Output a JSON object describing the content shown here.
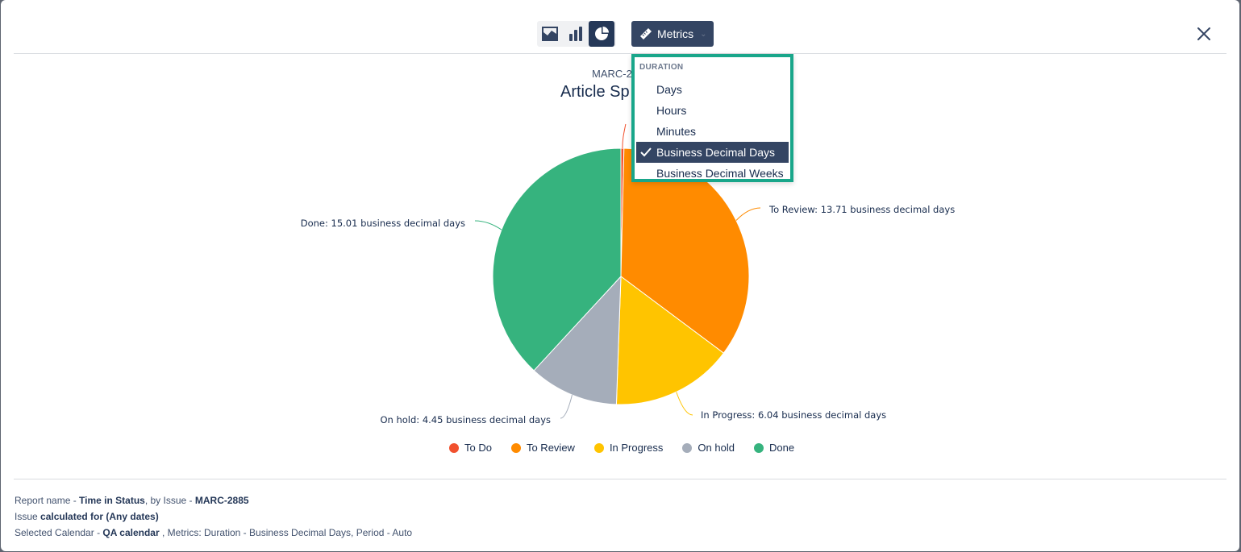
{
  "toolbar": {
    "views": [
      {
        "name": "area-chart-view",
        "icon": "area-chart-icon",
        "active": false
      },
      {
        "name": "bar-chart-view",
        "icon": "bar-chart-icon",
        "active": false
      },
      {
        "name": "pie-chart-view",
        "icon": "pie-chart-icon",
        "active": true
      }
    ],
    "metrics_label": "Metrics",
    "metrics_icon": "ruler-icon",
    "close_icon": "close-icon"
  },
  "metrics_menu": {
    "section": "DURATION",
    "items": [
      "Days",
      "Hours",
      "Minutes",
      "Business Decimal Days",
      "Business Decimal Weeks"
    ],
    "selected": "Business Decimal Days"
  },
  "chart": {
    "subtitle": "MARC-2",
    "title": "Article Sp"
  },
  "chart_data": {
    "type": "pie",
    "series": [
      {
        "name": "To Do",
        "value": 0.15,
        "color": "#f1512e",
        "label": ""
      },
      {
        "name": "To Review",
        "value": 13.71,
        "color": "#ff8b00",
        "label": "To Review: 13.71 business decimal days"
      },
      {
        "name": "In Progress",
        "value": 6.04,
        "color": "#ffc400",
        "label": "In Progress: 6.04 business decimal days"
      },
      {
        "name": "On hold",
        "value": 4.45,
        "color": "#a5adba",
        "label": "On hold: 4.45 business decimal days"
      },
      {
        "name": "Done",
        "value": 15.01,
        "color": "#36b37e",
        "label": "Done: 15.01 business decimal days"
      }
    ],
    "legend_position": "bottom"
  },
  "footer": {
    "l1_a": "Report name - ",
    "l1_b": "Time in Status",
    "l1_c": ", by Issue - ",
    "l1_d": "MARC-2885",
    "l2_a": "Issue ",
    "l2_b": "calculated for (Any dates)",
    "l3_a": "Selected Calendar - ",
    "l3_b": "QA calendar",
    "l3_c": " , Metrics: Duration - Business Decimal Days, Period - Auto"
  }
}
